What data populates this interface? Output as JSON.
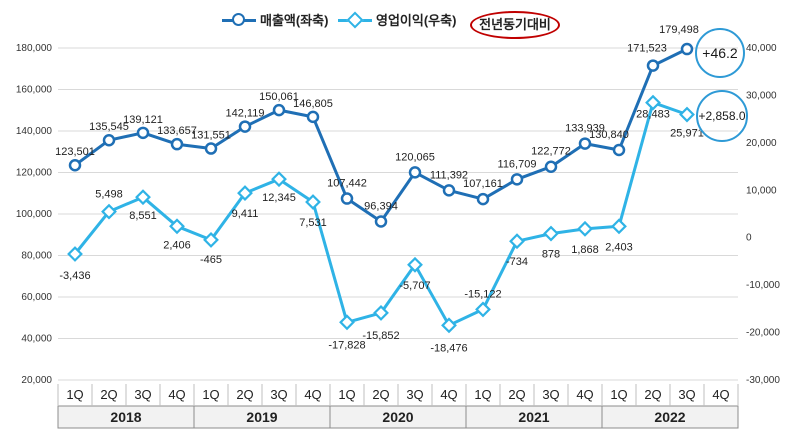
{
  "legend": {
    "revenue": "매출액(좌축)",
    "op_profit": "영업이익(우축)",
    "yoy": "전년동기대비"
  },
  "callouts": {
    "revenue_yoy": "+46.2",
    "op_profit_yoy": "+2,858.0"
  },
  "colors": {
    "revenue": "#1f6fb5",
    "op_profit": "#2fb3e6",
    "yoy_circle": "#c00000",
    "callout_circle": "#2e9ad6",
    "grid": "#d9d9d9",
    "year_band": "#f2f2f2"
  },
  "chart_data": {
    "type": "line",
    "categories": [
      "1Q",
      "2Q",
      "3Q",
      "4Q",
      "1Q",
      "2Q",
      "3Q",
      "4Q",
      "1Q",
      "2Q",
      "3Q",
      "4Q",
      "1Q",
      "2Q",
      "3Q",
      "4Q",
      "1Q",
      "2Q",
      "3Q",
      "4Q"
    ],
    "years": [
      "2018",
      "2019",
      "2020",
      "2021",
      "2022"
    ],
    "series": [
      {
        "name": "매출액(좌축)",
        "axis": "left",
        "marker": "circle",
        "values": [
          123501,
          135545,
          139121,
          133657,
          131551,
          142119,
          150061,
          146805,
          107442,
          96394,
          120065,
          111392,
          107161,
          116709,
          122772,
          133939,
          130840,
          171523,
          179498,
          null
        ],
        "labels": [
          "123,501",
          "135,545",
          "139,121",
          "133,657",
          "131,551",
          "142,119",
          "150,061",
          "146,805",
          "107,442",
          "96,394",
          "120,065",
          "111,392",
          "107,161",
          "116,709",
          "122,772",
          "133,939",
          "130,840",
          "171,523",
          "179,498",
          ""
        ]
      },
      {
        "name": "영업이익(우축)",
        "axis": "right",
        "marker": "diamond",
        "values": [
          -3436,
          5498,
          8551,
          2406,
          -465,
          9411,
          12345,
          7531,
          -17828,
          -15852,
          -5707,
          -18476,
          -15122,
          -734,
          878,
          1868,
          2403,
          28483,
          25971,
          null
        ],
        "labels": [
          "-3,436",
          "5,498",
          "8,551",
          "2,406",
          "-465",
          "9,411",
          "12,345",
          "7,531",
          "-17,828",
          "-15,852",
          "-5,707",
          "-18,476",
          "-15,122",
          "-734",
          "878",
          "1,868",
          "2,403",
          "28,483",
          "25,971",
          ""
        ]
      }
    ],
    "y_left": {
      "min": 20000,
      "max": 180000,
      "ticks": [
        "20,000",
        "40,000",
        "60,000",
        "80,000",
        "100,000",
        "120,000",
        "140,000",
        "160,000",
        "180,000"
      ],
      "tick_values": [
        20000,
        40000,
        60000,
        80000,
        100000,
        120000,
        140000,
        160000,
        180000
      ]
    },
    "y_right": {
      "min": -30000,
      "max": 40000,
      "ticks": [
        "-30,000",
        "-20,000",
        "-10,000",
        "0",
        "10,000",
        "20,000",
        "30,000",
        "40,000"
      ],
      "tick_values": [
        -30000,
        -20000,
        -10000,
        0,
        10000,
        20000,
        30000,
        40000
      ]
    },
    "grid": true,
    "legend_position": "top"
  }
}
